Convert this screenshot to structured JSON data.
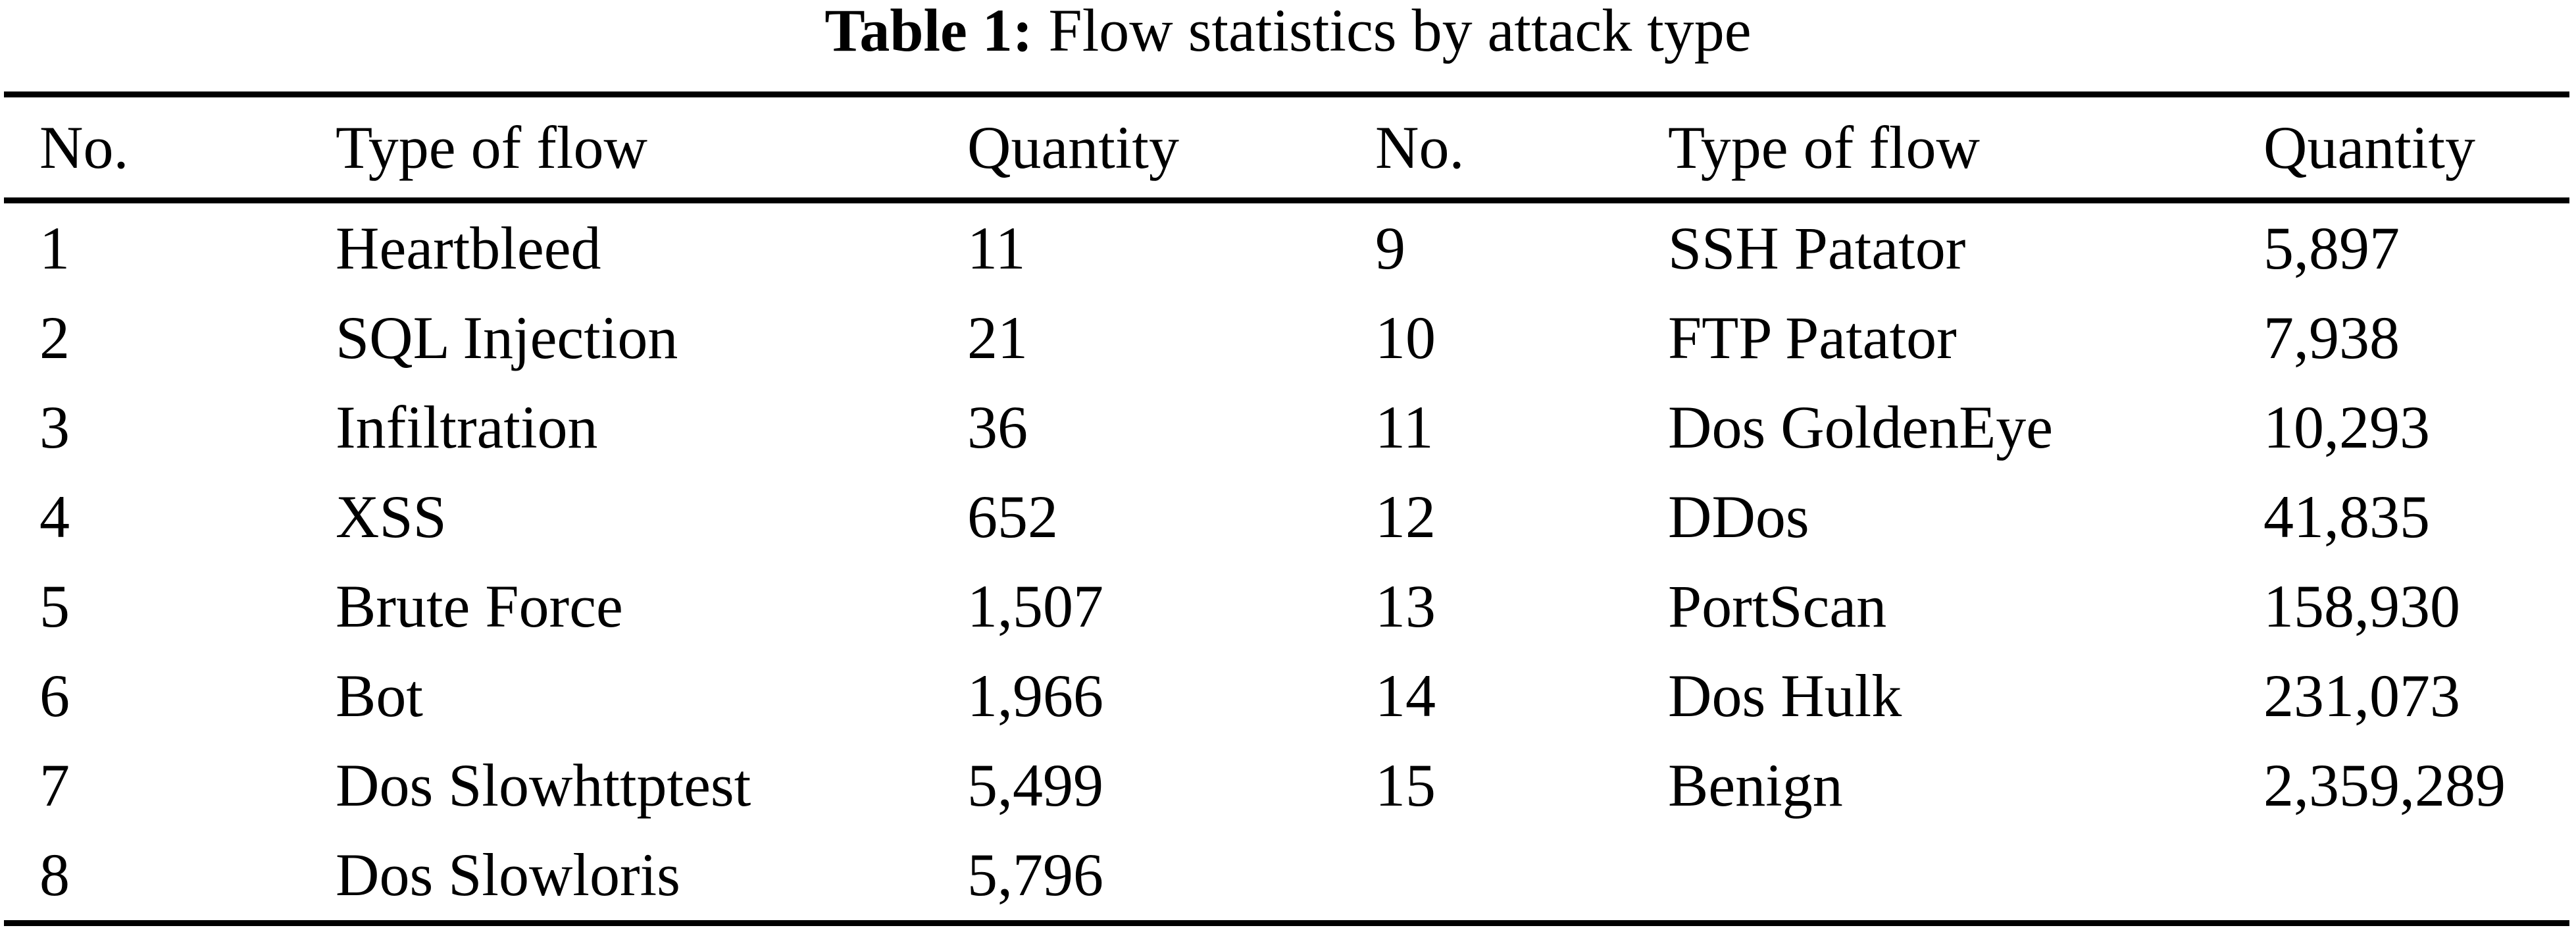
{
  "title": {
    "bold": "Table 1:",
    "rest": "Flow statistics by attack type"
  },
  "table": {
    "header_cells": [
      "No.",
      "Type of flow",
      "Quantity",
      "No.",
      "Type of flow",
      "Quantity"
    ],
    "rows": [
      [
        "1",
        "Heartbleed",
        "11",
        "9",
        "SSH Patator",
        "5,897"
      ],
      [
        "2",
        "SQL Injection",
        "21",
        "10",
        "FTP Patator",
        "7,938"
      ],
      [
        "3",
        "Infiltration",
        "36",
        "11",
        "Dos GoldenEye",
        "10,293"
      ],
      [
        "4",
        "XSS",
        "652",
        "12",
        "DDos",
        "41,835"
      ],
      [
        "5",
        "Brute Force",
        "1,507",
        "13",
        "PortScan",
        "158,930"
      ],
      [
        "6",
        "Bot",
        "1,966",
        "14",
        "Dos Hulk",
        "231,073"
      ],
      [
        "7",
        "Dos Slowhttptest",
        "5,499",
        "15",
        "Benign",
        "2,359,289"
      ],
      [
        "8",
        "Dos Slowloris",
        "5,796",
        "",
        "",
        ""
      ]
    ]
  },
  "colors": {
    "background": "#ffffff",
    "text": "#000000",
    "rule": "#000000"
  }
}
